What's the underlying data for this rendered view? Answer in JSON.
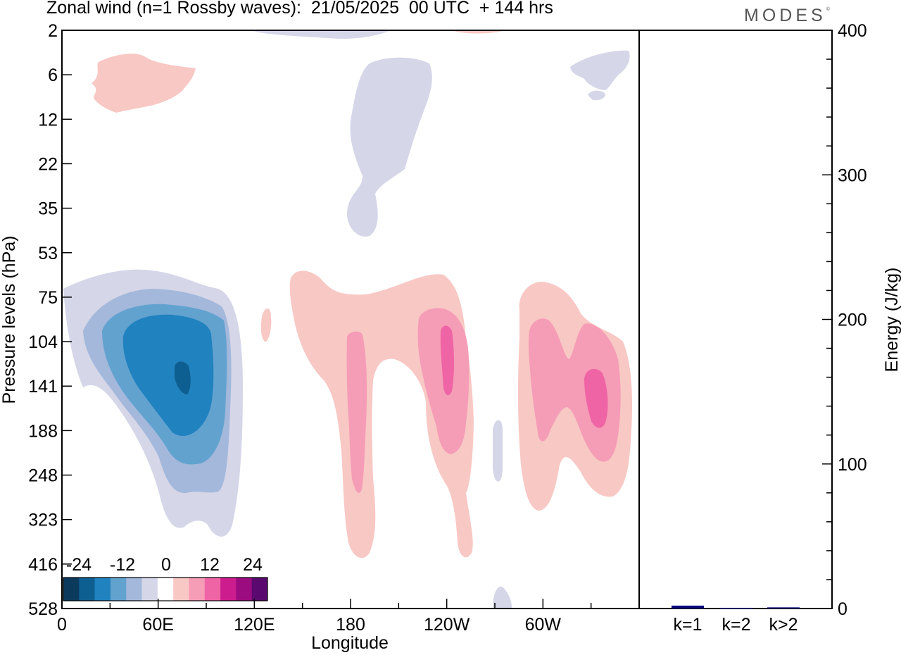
{
  "title": "Zonal wind (n=1 Rossby waves):  21/05/2025  00 UTC  + 144 hrs",
  "logo": "MODES",
  "logo_mark": "©",
  "chart_data": [
    {
      "type": "heatmap",
      "title": "Zonal wind (n=1 Rossby waves):  21/05/2025  00 UTC  + 144 hrs",
      "xlabel": "Longitude",
      "ylabel": "Pressure levels (hPa)",
      "x_ticks": [
        "0",
        "60E",
        "120E",
        "180",
        "120W",
        "60W"
      ],
      "x_tick_values": [
        0,
        60,
        120,
        180,
        240,
        300
      ],
      "xlim": [
        0,
        360
      ],
      "y_ticks": [
        "2",
        "6",
        "12",
        "22",
        "35",
        "53",
        "75",
        "104",
        "141",
        "188",
        "248",
        "323",
        "416",
        "528"
      ],
      "colorbar": {
        "labels": [
          "-24",
          "-12",
          "0",
          "12",
          "24"
        ],
        "colors": [
          "#0b3a5c",
          "#0e5f91",
          "#2082bf",
          "#62a2cf",
          "#a3b8db",
          "#d5d6e8",
          "#ffffff",
          "#f8c8c4",
          "#f59cb6",
          "#ef64a4",
          "#cc1c8e",
          "#9b0c80",
          "#5a0a6e"
        ]
      },
      "regions": [
        {
          "level": "neg1",
          "lon_range": [
            0,
            110
          ],
          "p_range": [
            63,
            340
          ],
          "note": "negative anomaly lobe, peak core near 75E, 141 hPa"
        },
        {
          "level": "neg5",
          "lon_range": [
            70,
            80
          ],
          "p_range": [
            125,
            158
          ]
        },
        {
          "level": "neg1",
          "lon_range": [
            175,
            225
          ],
          "p_range": [
            4,
            44
          ],
          "note": "upper-level negative"
        },
        {
          "level": "neg1",
          "lon_range": [
            310,
            340
          ],
          "p_range": [
            4,
            10
          ]
        },
        {
          "level": "pos1",
          "lon_range": [
            18,
            80
          ],
          "p_range": [
            4,
            13
          ],
          "note": "upper-level positive"
        },
        {
          "level": "pos1",
          "lon_range": [
            135,
            255
          ],
          "p_range": [
            63,
            420
          ]
        },
        {
          "level": "pos2",
          "lon_range": [
            228,
            258
          ],
          "p_range": [
            92,
            220
          ]
        },
        {
          "level": "pos3",
          "lon_range": [
            235,
            245
          ],
          "p_range": [
            115,
            150
          ]
        },
        {
          "level": "pos1",
          "lon_range": [
            270,
            340
          ],
          "p_range": [
            70,
            280
          ]
        },
        {
          "level": "pos3",
          "lon_range": [
            325,
            340
          ],
          "p_range": [
            128,
            175
          ]
        }
      ]
    },
    {
      "type": "bar",
      "categories": [
        "k=1",
        "k=2",
        "k>2"
      ],
      "values": [
        2,
        0.5,
        0.8
      ],
      "ylabel": "Energy (J/kg)",
      "ylim": [
        0,
        400
      ],
      "y_ticks": [
        "0",
        "100",
        "200",
        "300",
        "400"
      ],
      "colors": [
        "#0a0a7a",
        "#0a0a7a",
        "#0a0a7a"
      ]
    }
  ]
}
